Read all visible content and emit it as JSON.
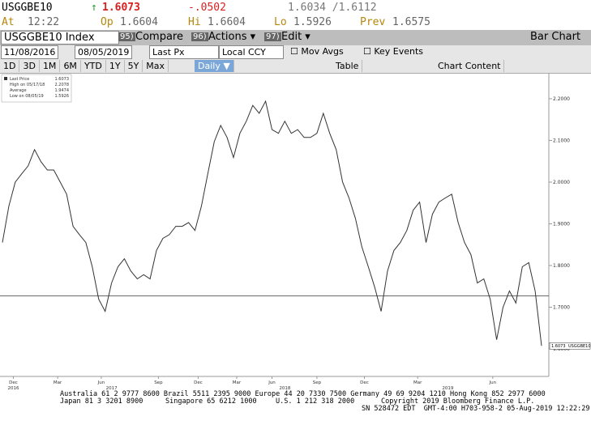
{
  "header": {
    "ticker": "USGGBE10",
    "arrow": "↑",
    "last": "1.6073",
    "change": "-.0502",
    "bid_ask": "1.6034 /1.6112",
    "time_label": "At",
    "time": "12:22",
    "open_label": "Op",
    "open": "1.6604",
    "high_label": "Hi",
    "high": "1.6604",
    "low_label": "Lo",
    "low": "1.5926",
    "prev_label": "Prev",
    "prev": "1.6575"
  },
  "toolbar": {
    "security": "USGGBE10 Index",
    "compare_num": "95)",
    "compare": "Compare",
    "actions_num": "96)",
    "actions": "Actions ▾",
    "edit_num": "97)",
    "edit": "Edit ▾",
    "view": "Bar Chart"
  },
  "controls": {
    "start": "11/08/2016",
    "end": "08/05/2019",
    "field": "Last Px",
    "currency": "Local CCY",
    "mov_avgs": "Mov Avgs",
    "key_events": "Key Events"
  },
  "periods": [
    "1D",
    "3D",
    "1M",
    "6M",
    "YTD",
    "1Y",
    "5Y",
    "Max"
  ],
  "frequency": "Daily ▼",
  "table": "Table",
  "chart_content": "Chart Content",
  "chart_data": {
    "type": "line",
    "series": [
      {
        "name": "Last Price",
        "color": "#333333",
        "values": [
          1.855,
          1.942,
          2.0,
          2.02,
          2.039,
          2.078,
          2.049,
          2.029,
          2.029,
          2.0,
          1.971,
          1.894,
          1.874,
          1.855,
          1.797,
          1.719,
          1.69,
          1.758,
          1.797,
          1.816,
          1.787,
          1.768,
          1.778,
          1.768,
          1.836,
          1.865,
          1.874,
          1.894,
          1.894,
          1.903,
          1.884,
          1.942,
          2.02,
          2.097,
          2.136,
          2.107,
          2.059,
          2.117,
          2.146,
          2.184,
          2.165,
          2.194,
          2.126,
          2.117,
          2.146,
          2.117,
          2.126,
          2.107,
          2.107,
          2.117,
          2.165,
          2.117,
          2.078,
          2.0,
          1.962,
          1.913,
          1.845,
          1.797,
          1.748,
          1.69,
          1.787,
          1.836,
          1.855,
          1.884,
          1.933,
          1.952,
          1.855,
          1.923,
          1.952,
          1.962,
          1.971,
          1.903,
          1.855,
          1.826,
          1.758,
          1.768,
          1.719,
          1.622,
          1.7,
          1.739,
          1.71,
          1.797,
          1.807,
          1.739,
          1.6073
        ]
      }
    ],
    "stats": [
      {
        "label": "High on 05/17/18",
        "value": 2.2078
      },
      {
        "label": "Average",
        "value": 1.9474
      },
      {
        "label": "Low on 08/05/19",
        "value": 1.5926
      }
    ],
    "hline": 1.727,
    "last_label": "USGGBE10",
    "ylim": [
      1.534,
      2.262
    ],
    "yticks": [
      {
        "value": 1.6,
        "label": "1.6000"
      },
      {
        "value": 1.7,
        "label": "1.7000"
      },
      {
        "value": 1.8,
        "label": "1.8000"
      },
      {
        "value": 1.9,
        "label": "1.9000"
      },
      {
        "value": 2.0,
        "label": "2.0000"
      },
      {
        "value": 2.1,
        "label": "2.1000"
      },
      {
        "value": 2.2,
        "label": "2.2000"
      }
    ],
    "xticks": [
      {
        "value": 1.7,
        "label": "Dec"
      },
      {
        "value": 8.6,
        "label": "Mar"
      },
      {
        "value": 15.4,
        "label": "Jun"
      },
      {
        "value": 24.3,
        "label": "Sep"
      },
      {
        "value": 30.5,
        "label": "Dec"
      },
      {
        "value": 36.5,
        "label": "Mar"
      },
      {
        "value": 42.0,
        "label": "Jun"
      },
      {
        "value": 49.0,
        "label": "Sep"
      },
      {
        "value": 56.4,
        "label": "Dec"
      },
      {
        "value": 64.7,
        "label": "Mar"
      },
      {
        "value": 76.4,
        "label": "Jun"
      }
    ],
    "years": [
      {
        "value": 1.7,
        "label": "2016"
      },
      {
        "value": 17.0,
        "label": "2017"
      },
      {
        "value": 44.0,
        "label": "2018"
      },
      {
        "value": 69.4,
        "label": "2019"
      }
    ]
  },
  "footer": {
    "line1": "Australia 61 2 9777 8600 Brazil 5511 2395 9000 Europe 44 20 7330 7500 Germany 49 69 9204 1210 Hong Kong 852 2977 6000",
    "japan": "Japan 81 3 3201 8900",
    "singapore": "Singapore 65 6212 1000",
    "us": "U.S. 1 212 318 2000",
    "copyright": "Copyright 2019 Bloomberg Finance L.P.",
    "sn": "SN 528472 EDT  GMT-4:00 H703-958-2 05-Aug-2019 12:22:29"
  }
}
